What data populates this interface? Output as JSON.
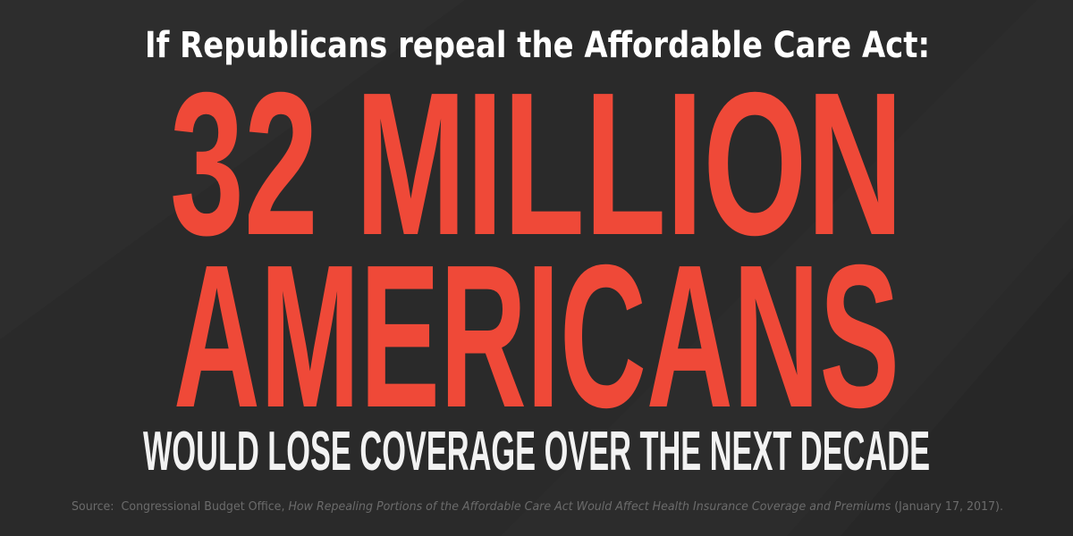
{
  "header": {
    "title": "If Republicans repeal the Affordable Care Act:"
  },
  "main": {
    "line1": "32 MILLION",
    "line2": "AMERICANS",
    "line3": "WOULD LOSE COVERAGE OVER THE NEXT DECADE"
  },
  "source": {
    "prefix": "Source:  Congressional Budget Office, ",
    "title": "How Repealing Portions of the Affordable Care Act Would Affect Health Insurance Coverage and Premiums",
    "suffix": " (January 17, 2017)."
  }
}
